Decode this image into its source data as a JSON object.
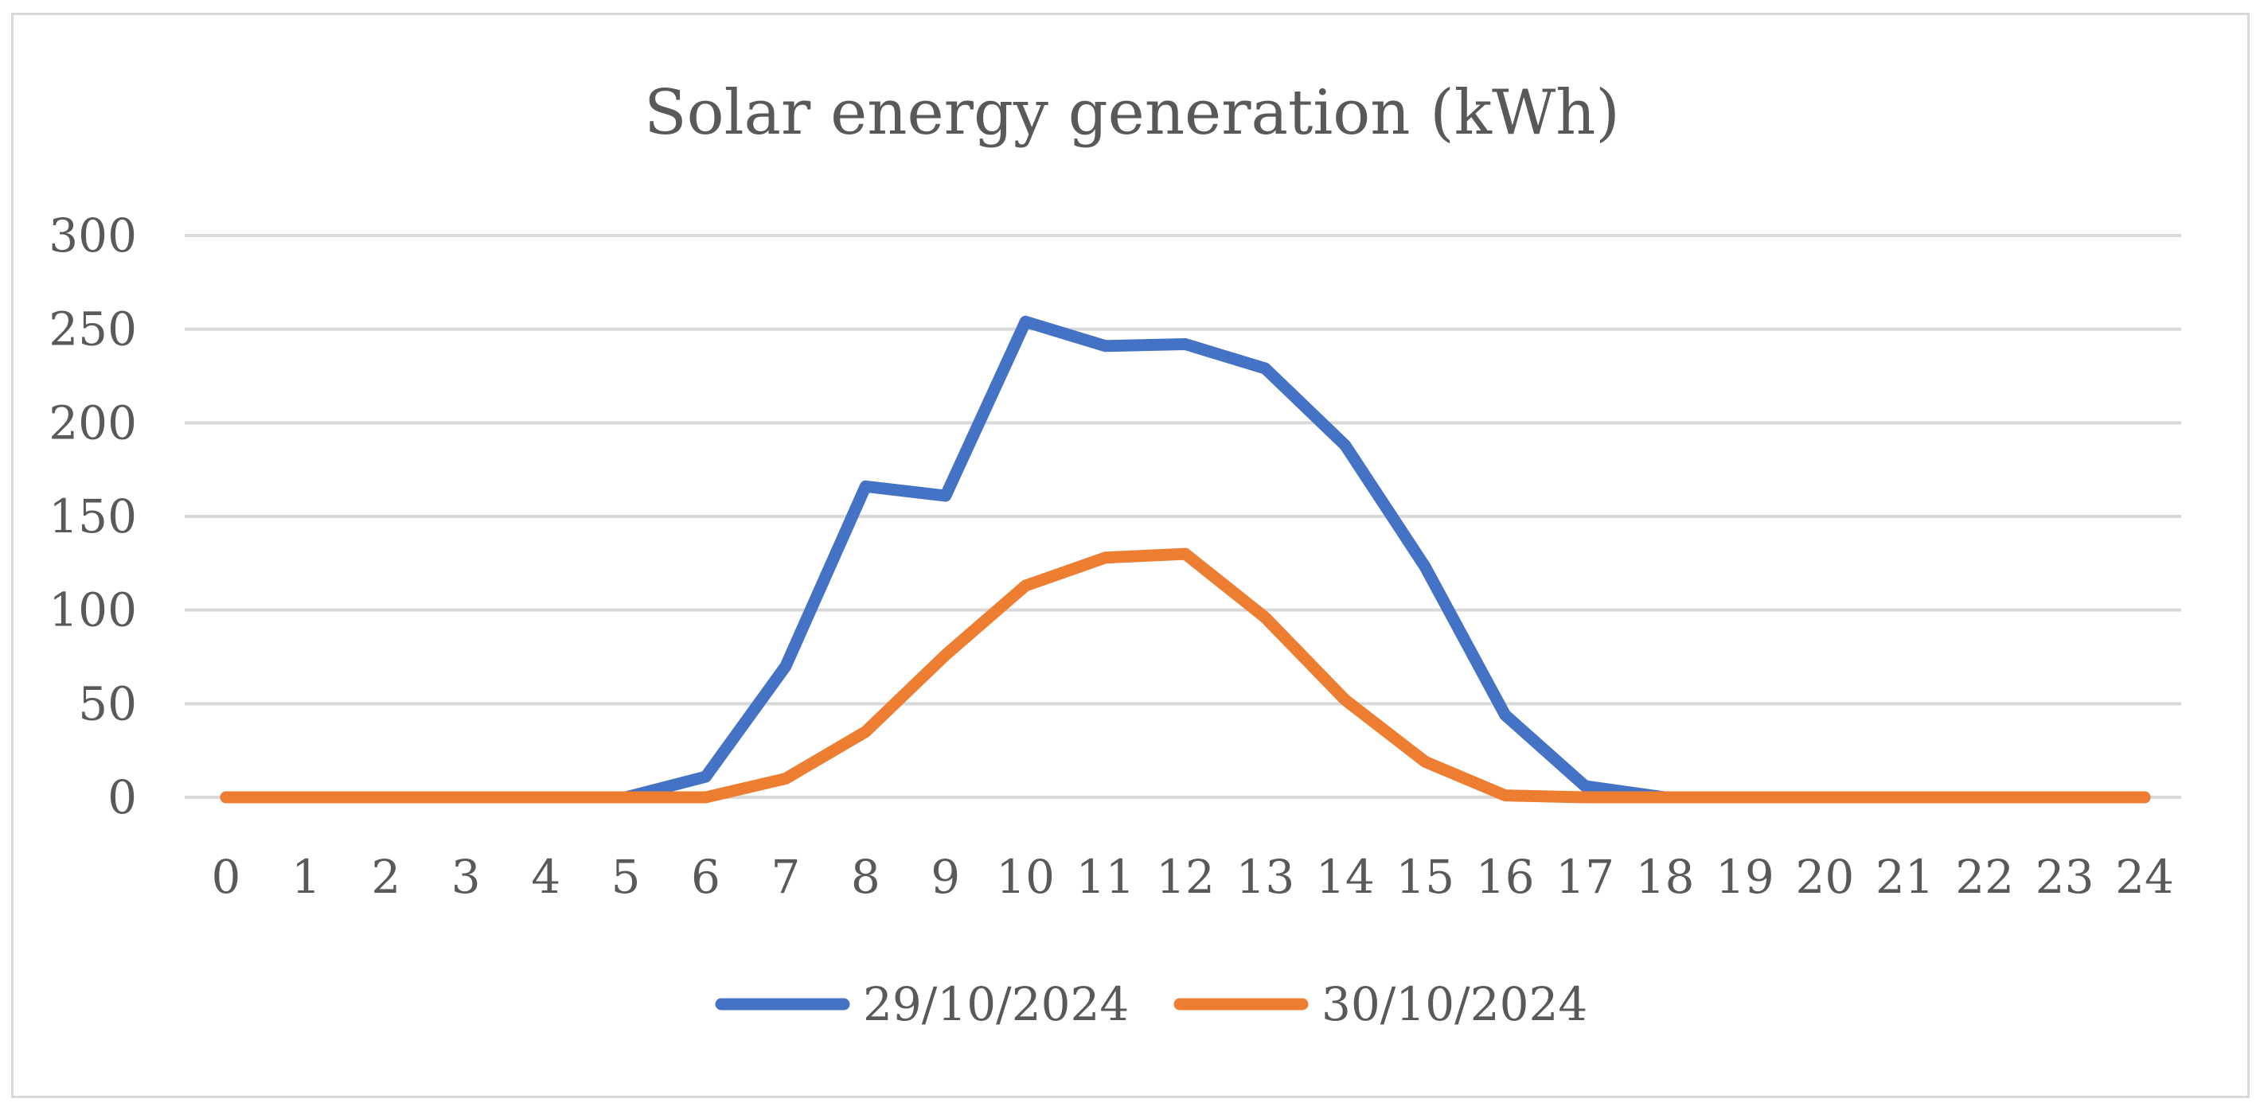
{
  "chart_data": {
    "type": "line",
    "title": "Solar energy generation (kWh)",
    "xlabel": "",
    "ylabel": "",
    "x": [
      0,
      1,
      2,
      3,
      4,
      5,
      6,
      7,
      8,
      9,
      10,
      11,
      12,
      13,
      14,
      15,
      16,
      17,
      18,
      19,
      20,
      21,
      22,
      23,
      24
    ],
    "x_tick_labels": [
      "0",
      "1",
      "2",
      "3",
      "4",
      "5",
      "6",
      "7",
      "8",
      "9",
      "10",
      "11",
      "12",
      "13",
      "14",
      "15",
      "16",
      "17",
      "18",
      "19",
      "20",
      "21",
      "22",
      "23",
      "24"
    ],
    "ylim": [
      0,
      300
    ],
    "y_ticks": [
      0,
      50,
      100,
      150,
      200,
      250,
      300
    ],
    "y_tick_labels": [
      "0",
      "50",
      "100",
      "150",
      "200",
      "250",
      "300"
    ],
    "grid": true,
    "legend_position": "bottom",
    "series": [
      {
        "name": "29/10/2024",
        "color": "#4472c4",
        "values": [
          0,
          0,
          0,
          0,
          0,
          0,
          11,
          70,
          166,
          161,
          254,
          241,
          242,
          229,
          188,
          123,
          44,
          6,
          0,
          0,
          0,
          0,
          0,
          0,
          0
        ]
      },
      {
        "name": "30/10/2024",
        "color": "#ed7d31",
        "values": [
          0,
          0,
          0,
          0,
          0,
          0,
          0,
          10,
          35,
          76,
          113,
          128,
          130,
          96,
          52,
          19,
          1,
          0,
          0,
          0,
          0,
          0,
          0,
          0,
          0
        ]
      }
    ]
  },
  "colors": {
    "gridline": "#d9d9d9",
    "text": "#595959",
    "frame": "#d9d9d9"
  }
}
